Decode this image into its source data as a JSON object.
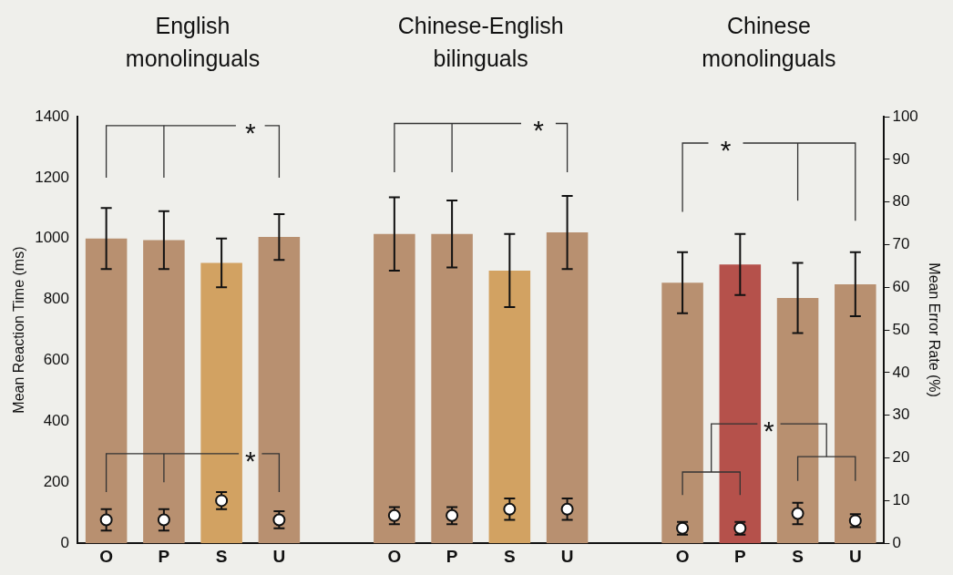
{
  "chart_data": {
    "type": "bar",
    "categories": [
      "O",
      "P",
      "S",
      "U",
      null,
      "O",
      "P",
      "S",
      "U",
      null,
      "O",
      "P",
      "S",
      "U"
    ],
    "series": [
      {
        "type": "bar",
        "color": "#b89070",
        "colors": [
          "#b89070",
          "#b89070",
          "#d2a262",
          "#b89070",
          null,
          "#b89070",
          "#b89070",
          "#d2a262",
          "#b89070",
          null,
          "#b89070",
          "#b5514b",
          "#b89070",
          "#b89070"
        ],
        "values": [
          1000,
          995,
          920,
          1005,
          null,
          1015,
          1015,
          895,
          1020,
          null,
          855,
          915,
          805,
          850
        ],
        "errors": [
          100,
          95,
          80,
          75,
          null,
          120,
          110,
          120,
          120,
          null,
          100,
          100,
          115,
          105
        ]
      },
      {
        "type": "scatter",
        "axis": "y2",
        "color": "#ffffff",
        "marker": "circle",
        "values": [
          5.5,
          5.5,
          10,
          5.5,
          null,
          6.5,
          6.5,
          8,
          8,
          null,
          3.5,
          3.5,
          7,
          5.3
        ],
        "errors": [
          2.5,
          2.5,
          2,
          2,
          null,
          2,
          2,
          2.5,
          2.5,
          null,
          1.5,
          1.5,
          2.5,
          1.5
        ]
      }
    ],
    "ylabel": "Mean Reaction Time (ms)",
    "y2label": "Mean Error Rate (%)",
    "ylim": [
      0,
      1400
    ],
    "yticks": [
      0,
      200,
      400,
      600,
      800,
      1000,
      1200,
      1400
    ],
    "y2lim": [
      0,
      100
    ],
    "y2ticks": [
      0,
      10,
      20,
      30,
      40,
      50,
      60,
      70,
      80,
      90,
      100
    ],
    "grid": false,
    "legend": false,
    "annotations": [
      "English monolinguals",
      "Chinese-English bilinguals",
      "Chinese monolinguals",
      "*",
      "*",
      "*",
      "*",
      "*"
    ]
  }
}
